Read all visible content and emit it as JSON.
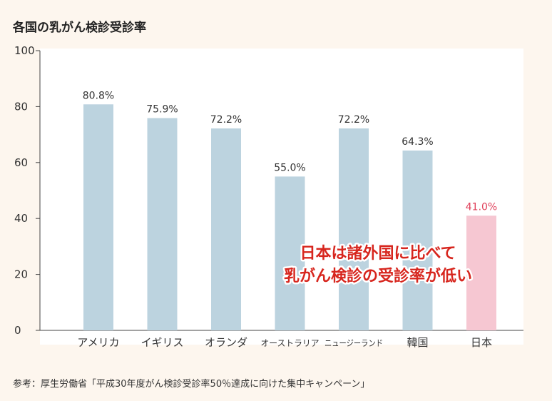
{
  "chart_data": {
    "type": "bar",
    "title": "各国の乳がん検診受診率",
    "categories": [
      "アメリカ",
      "イギリス",
      "オランダ",
      "オーストラリア",
      "ニュージーランド",
      "韓国",
      "日本"
    ],
    "values": [
      80.8,
      75.9,
      72.2,
      55.0,
      72.2,
      64.3,
      41.0
    ],
    "value_labels": [
      "80.8%",
      "75.9%",
      "72.2%",
      "55.0%",
      "72.2%",
      "64.3%",
      "41.0%"
    ],
    "yticks": [
      "0",
      "20",
      "40",
      "60",
      "80",
      "100"
    ],
    "ylim": [
      0,
      100
    ],
    "xlabel": "",
    "ylabel": "",
    "grid": false,
    "highlight_index": 6,
    "annotation": [
      "日本は諸外国に比べて",
      "乳がん検診の受診率が低い"
    ]
  },
  "colors": {
    "bar": "#bcd3df",
    "highlight_bar": "#f6c7d2",
    "highlight_label": "#e0405a",
    "annotation_text": "#d7261e",
    "plot_background": "#ffffff",
    "page_background": "#fdf6ee"
  },
  "source_note": "参考：厚生労働省「平成30年度がん検診受診率50％達成に向けた集中キャンペーン」"
}
